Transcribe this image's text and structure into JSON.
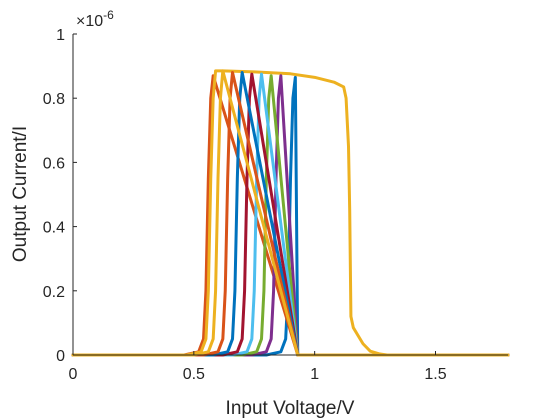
{
  "chart_data": {
    "type": "line",
    "title": "",
    "xlabel": "Input Voltage/V",
    "ylabel": "Output Current/I",
    "y_exponent_label": "×10",
    "y_exponent_power": "-6",
    "xlim": [
      0,
      1.8
    ],
    "ylim": [
      0,
      1
    ],
    "x_ticks": [
      0,
      0.5,
      1,
      1.5
    ],
    "x_tick_labels": [
      "0",
      "0.5",
      "1",
      "1.5"
    ],
    "y_ticks": [
      0,
      0.2,
      0.4,
      0.6,
      0.8,
      1
    ],
    "y_tick_labels": [
      "0",
      "0.2",
      "0.4",
      "0.6",
      "0.8",
      "1"
    ],
    "grid": false,
    "legend": "none",
    "series": [
      {
        "color": "#0072BD",
        "x": [
          0,
          0.8,
          0.86,
          0.88,
          0.89,
          0.9,
          0.91,
          0.92,
          0.93,
          1.8
        ],
        "y": [
          0,
          0,
          0.01,
          0.05,
          0.2,
          0.55,
          0.8,
          0.865,
          0,
          0
        ]
      },
      {
        "color": "#D95319",
        "x": [
          0,
          0.46,
          0.52,
          0.54,
          0.55,
          0.56,
          0.57,
          0.58,
          0.93,
          1.8
        ],
        "y": [
          0,
          0,
          0.01,
          0.05,
          0.2,
          0.55,
          0.8,
          0.87,
          0,
          0
        ]
      },
      {
        "color": "#EDB120",
        "x": [
          0,
          0.47,
          0.53,
          0.55,
          0.56,
          0.57,
          0.58,
          0.59,
          0.62,
          0.75,
          0.9,
          1.0,
          1.08,
          1.12,
          1.13,
          1.14,
          1.145,
          1.15,
          1.16,
          1.18,
          1.2,
          1.23,
          1.27,
          1.3,
          1.35,
          1.8
        ],
        "y": [
          0,
          0,
          0.01,
          0.05,
          0.2,
          0.55,
          0.8,
          0.885,
          0.885,
          0.882,
          0.876,
          0.865,
          0.85,
          0.835,
          0.8,
          0.65,
          0.45,
          0.12,
          0.085,
          0.06,
          0.035,
          0.012,
          0.003,
          0,
          0,
          0
        ]
      },
      {
        "color": "#7E2F8E",
        "x": [
          0,
          0.74,
          0.8,
          0.82,
          0.83,
          0.84,
          0.85,
          0.86,
          0.93,
          1.8
        ],
        "y": [
          0,
          0,
          0.01,
          0.05,
          0.2,
          0.55,
          0.8,
          0.87,
          0,
          0
        ]
      },
      {
        "color": "#77AC30",
        "x": [
          0,
          0.7,
          0.76,
          0.78,
          0.79,
          0.8,
          0.81,
          0.82,
          0.93,
          1.8
        ],
        "y": [
          0,
          0,
          0.01,
          0.05,
          0.2,
          0.55,
          0.8,
          0.87,
          0,
          0
        ]
      },
      {
        "color": "#4DBEEE",
        "x": [
          0,
          0.66,
          0.72,
          0.74,
          0.75,
          0.76,
          0.77,
          0.78,
          0.93,
          1.8
        ],
        "y": [
          0,
          0,
          0.01,
          0.05,
          0.2,
          0.55,
          0.8,
          0.875,
          0,
          0
        ]
      },
      {
        "color": "#A2142F",
        "x": [
          0,
          0.62,
          0.68,
          0.7,
          0.71,
          0.72,
          0.73,
          0.74,
          0.93,
          1.8
        ],
        "y": [
          0,
          0,
          0.01,
          0.05,
          0.2,
          0.55,
          0.8,
          0.875,
          0,
          0
        ]
      },
      {
        "color": "#0072BD",
        "x": [
          0,
          0.58,
          0.64,
          0.66,
          0.67,
          0.68,
          0.69,
          0.7,
          0.93,
          1.8
        ],
        "y": [
          0,
          0,
          0.01,
          0.05,
          0.2,
          0.55,
          0.8,
          0.88,
          0,
          0
        ]
      },
      {
        "color": "#D95319",
        "x": [
          0,
          0.54,
          0.6,
          0.62,
          0.63,
          0.64,
          0.65,
          0.66,
          0.93,
          1.8
        ],
        "y": [
          0,
          0,
          0.01,
          0.05,
          0.2,
          0.55,
          0.8,
          0.88,
          0,
          0
        ]
      },
      {
        "color": "#EDB120",
        "x": [
          0,
          0.5,
          0.56,
          0.58,
          0.59,
          0.6,
          0.61,
          0.62,
          0.93,
          1.8
        ],
        "y": [
          0,
          0,
          0.01,
          0.05,
          0.2,
          0.55,
          0.8,
          0.885,
          0,
          0
        ]
      }
    ]
  }
}
